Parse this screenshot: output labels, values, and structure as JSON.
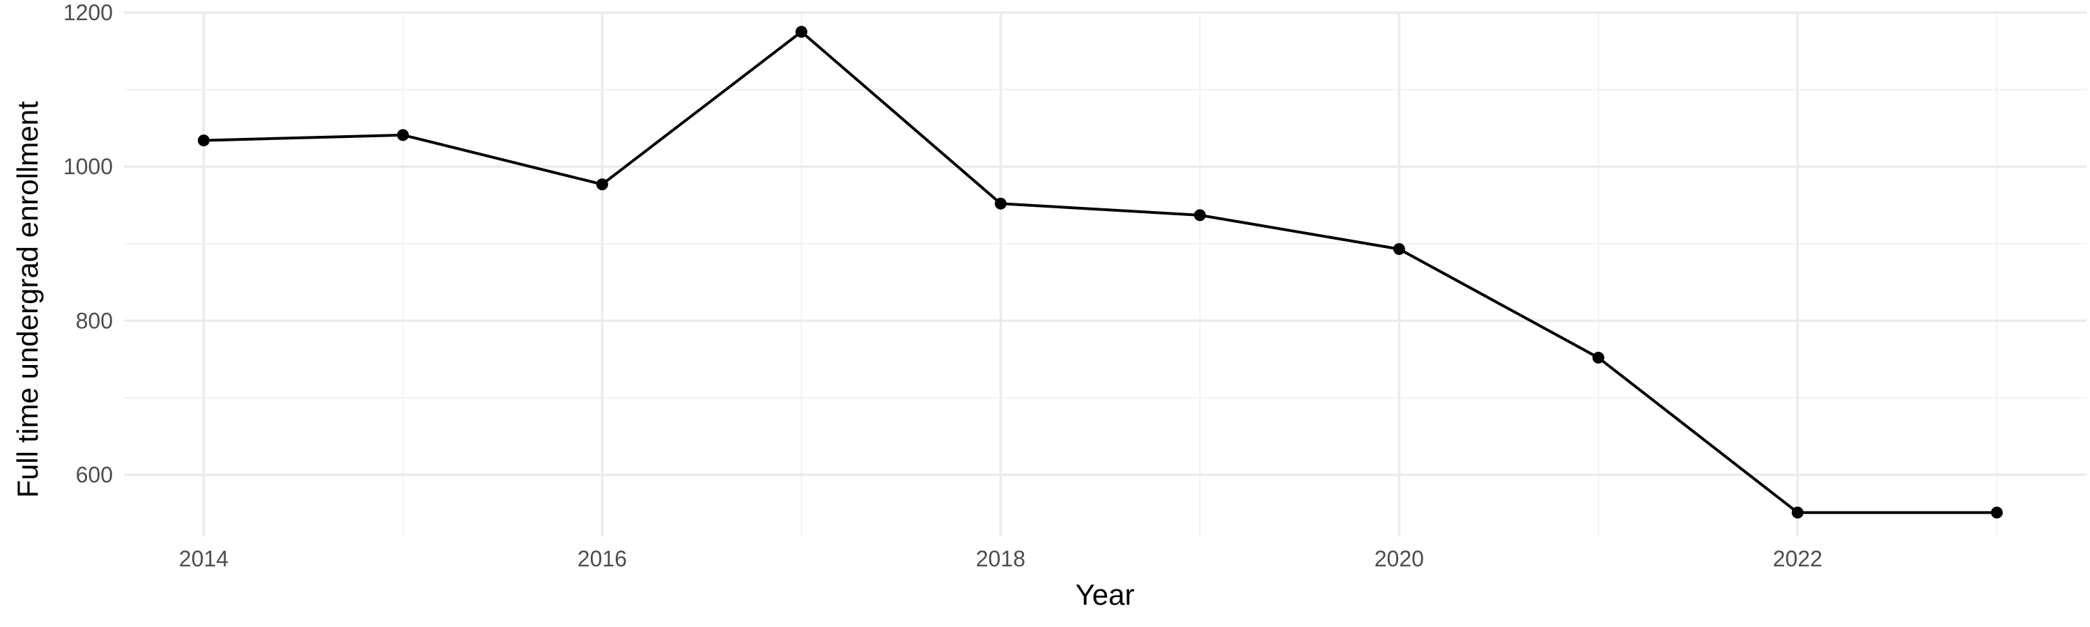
{
  "chart_data": {
    "type": "line",
    "title": "",
    "xlabel": "Year",
    "ylabel": "Full time undergrad enrollment",
    "x": [
      2014,
      2015,
      2016,
      2017,
      2018,
      2019,
      2020,
      2021,
      2022,
      2023
    ],
    "series": [
      {
        "name": "",
        "values": [
          1034,
          1041,
          977,
          1175,
          952,
          937,
          893,
          752,
          551,
          551
        ]
      }
    ],
    "xlim": [
      2013.6,
      2023.45
    ],
    "ylim": [
      520,
      1200
    ],
    "x_ticks": [
      2014,
      2016,
      2018,
      2020,
      2022
    ],
    "y_ticks": [
      600,
      800,
      1000,
      1200
    ],
    "x_tick_labels": [
      "2014",
      "2016",
      "2018",
      "2020",
      "2022"
    ],
    "y_tick_labels": [
      "600",
      "800",
      "1000",
      "1200"
    ],
    "grid": true,
    "legend": "none",
    "colors": {
      "line": "#000000",
      "grid": "#ebebeb",
      "tick_text": "#4d4d4d"
    }
  }
}
